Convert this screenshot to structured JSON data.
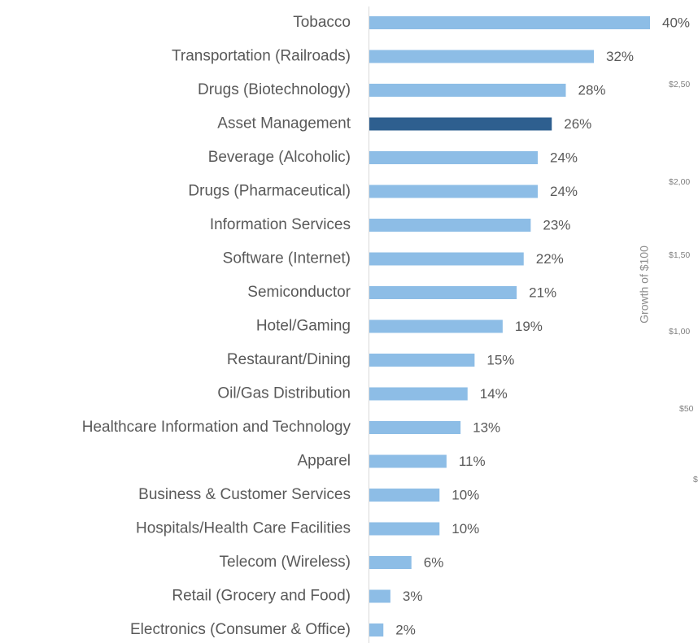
{
  "chart_data": {
    "type": "bar",
    "orientation": "horizontal",
    "categories": [
      "Tobacco",
      "Transportation (Railroads)",
      "Drugs (Biotechnology)",
      "Asset Management",
      "Beverage (Alcoholic)",
      "Drugs (Pharmaceutical)",
      "Information Services",
      "Software (Internet)",
      "Semiconductor",
      "Hotel/Gaming",
      "Restaurant/Dining",
      "Oil/Gas Distribution",
      "Healthcare Information and Technology",
      "Apparel",
      "Business & Customer Services",
      "Hospitals/Health Care Facilities",
      "Telecom (Wireless)",
      "Retail (Grocery and Food)",
      "Electronics (Consumer & Office)"
    ],
    "values": [
      40,
      32,
      28,
      26,
      24,
      24,
      23,
      22,
      21,
      19,
      15,
      14,
      13,
      11,
      10,
      10,
      6,
      3,
      2
    ],
    "value_labels": [
      "40%",
      "32%",
      "28%",
      "26%",
      "24%",
      "24%",
      "23%",
      "22%",
      "21%",
      "19%",
      "15%",
      "14%",
      "13%",
      "11%",
      "10%",
      "10%",
      "6%",
      "3%",
      "2%"
    ],
    "colors": [
      "#8dbde6",
      "#8dbde6",
      "#8dbde6",
      "#2e5f8f",
      "#8dbde6",
      "#8dbde6",
      "#8dbde6",
      "#8dbde6",
      "#8dbde6",
      "#8dbde6",
      "#8dbde6",
      "#8dbde6",
      "#8dbde6",
      "#8dbde6",
      "#8dbde6",
      "#8dbde6",
      "#8dbde6",
      "#8dbde6",
      "#8dbde6"
    ]
  },
  "partial_chart": {
    "axis_label": "Growth of $100",
    "tick_labels": [
      "$2,50",
      "$2,00",
      "$1,50",
      "$1,00",
      "$50",
      "$"
    ]
  }
}
